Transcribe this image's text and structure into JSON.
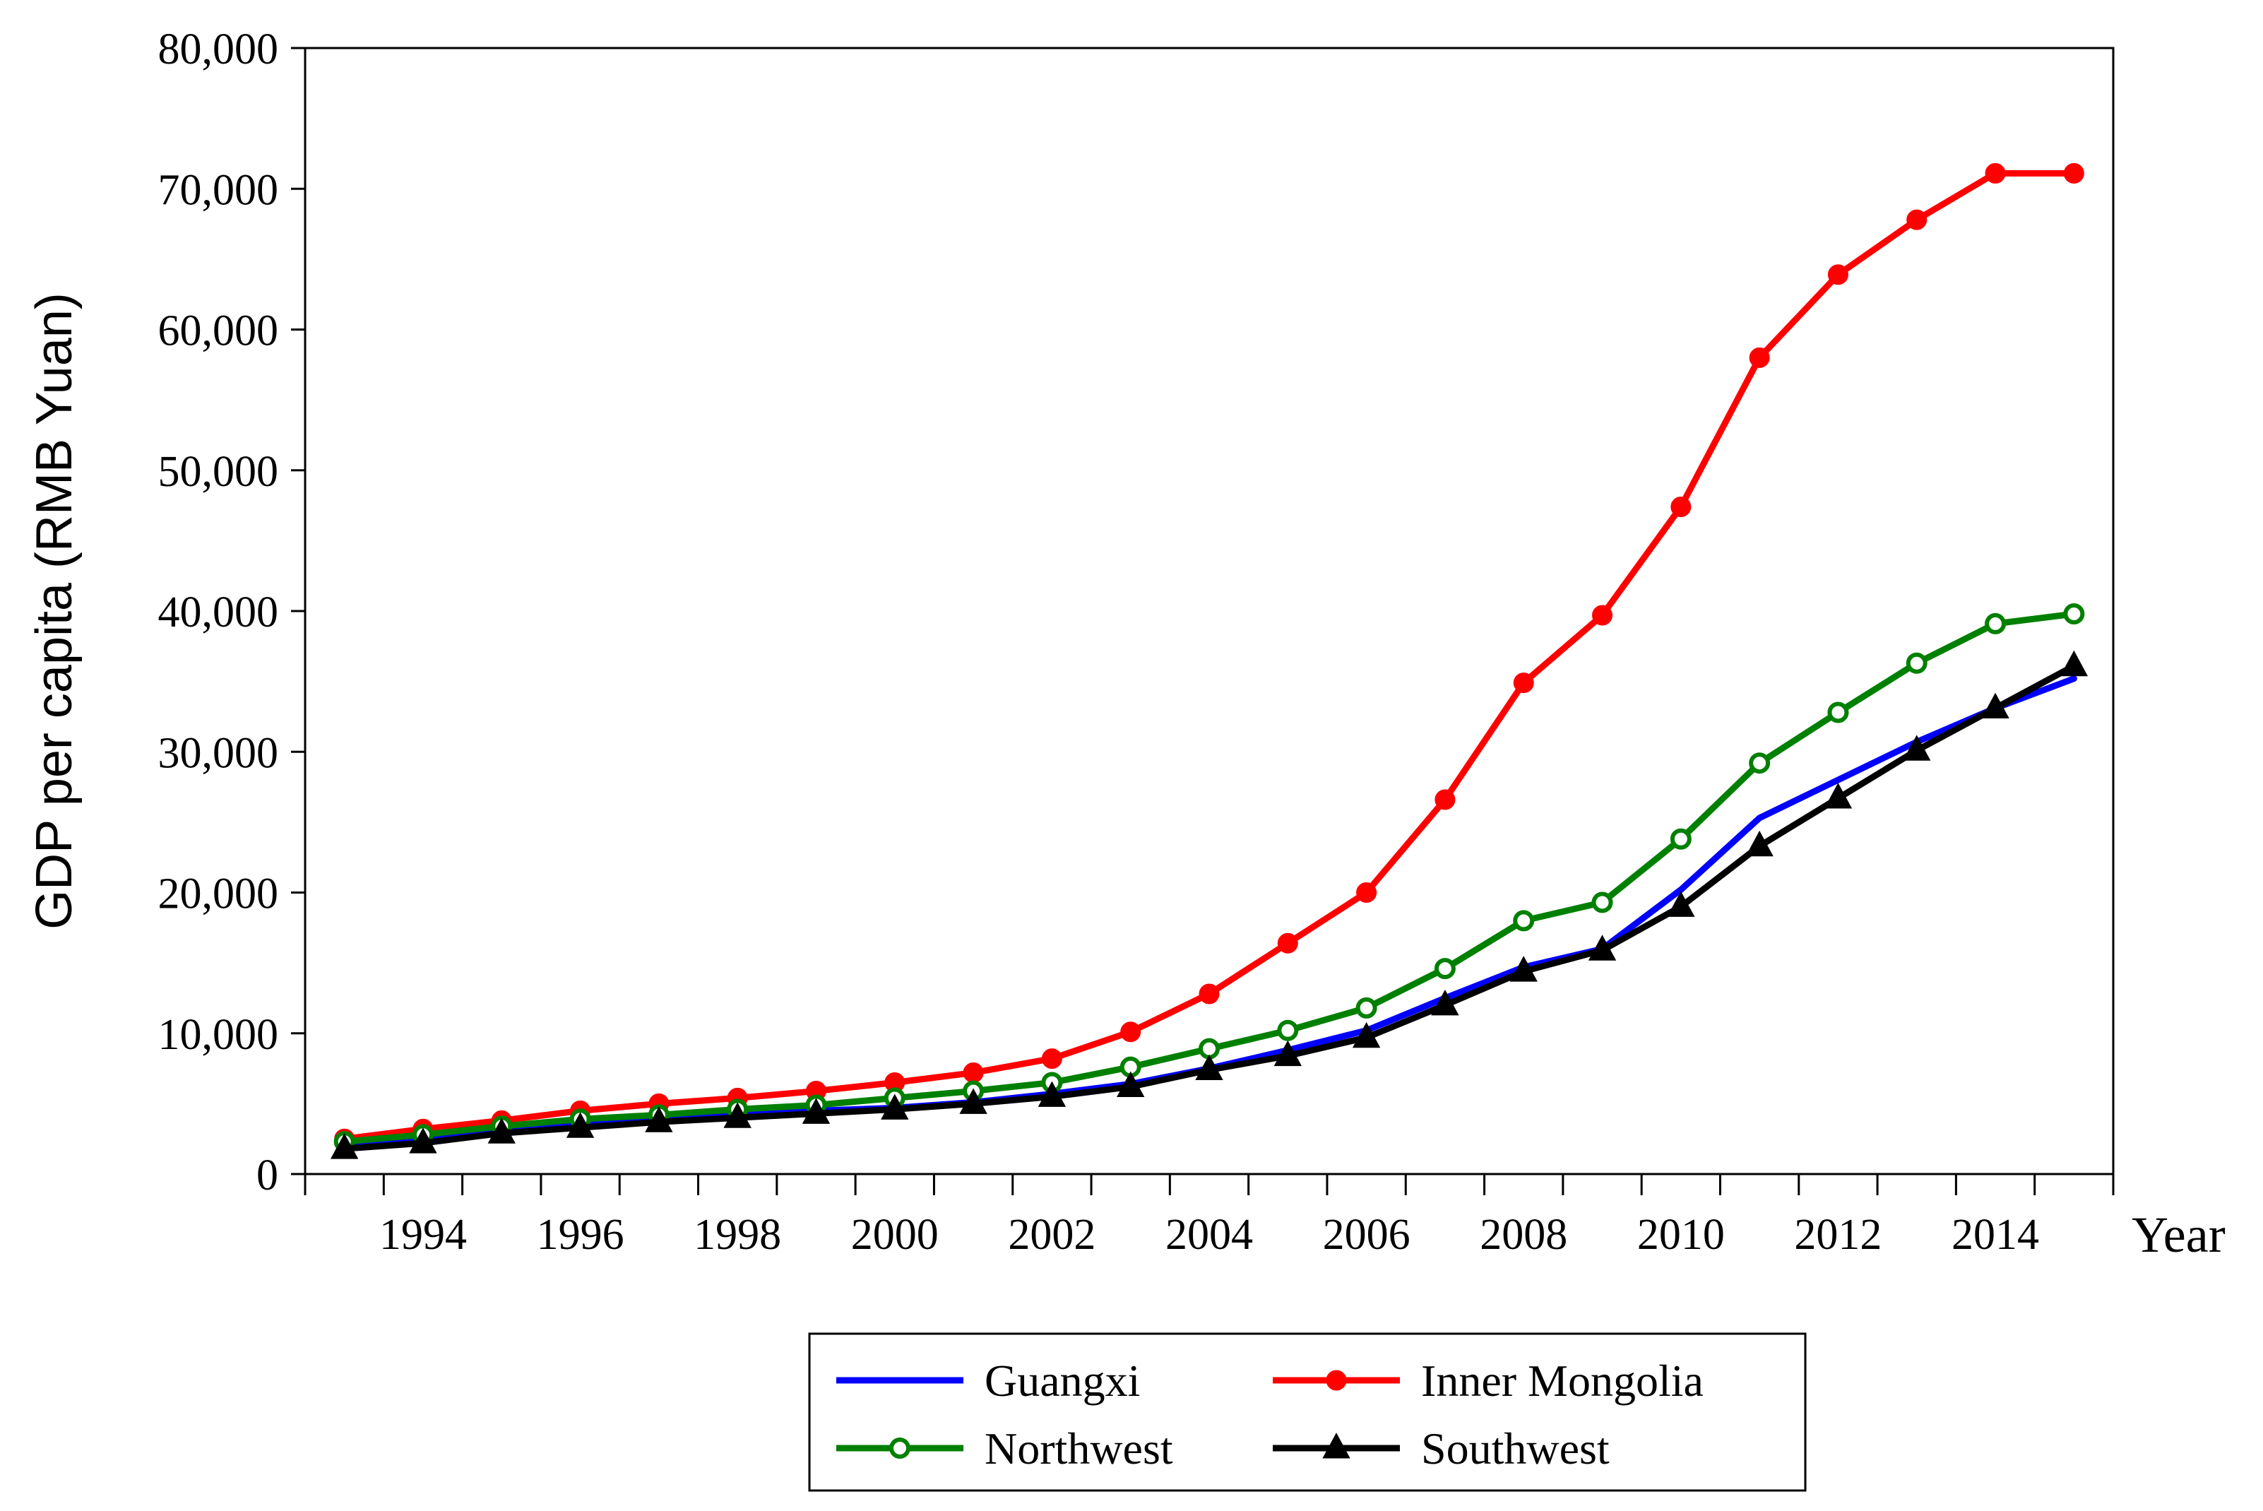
{
  "chart_data": {
    "type": "line",
    "title": "",
    "xlabel": "Year",
    "ylabel": "GDP per capita (RMB Yuan)",
    "ylim": [
      0,
      80000
    ],
    "xlim": [
      1992.5,
      2015.5
    ],
    "grid": false,
    "legend_position": "bottom-center",
    "y_ticks": [
      0,
      10000,
      20000,
      30000,
      40000,
      50000,
      60000,
      70000,
      80000
    ],
    "y_tick_labels": [
      "0",
      "10,000",
      "20,000",
      "30,000",
      "40,000",
      "50,000",
      "60,000",
      "70,000",
      "80,000"
    ],
    "x_ticks": [
      1994,
      1996,
      1998,
      2000,
      2002,
      2004,
      2006,
      2008,
      2010,
      2012,
      2014
    ],
    "x_tick_labels": [
      "1994",
      "1996",
      "1998",
      "2000",
      "2002",
      "2004",
      "2006",
      "2008",
      "2010",
      "2012",
      "2014"
    ],
    "x": [
      1993,
      1994,
      1995,
      1996,
      1997,
      1998,
      1999,
      2000,
      2001,
      2002,
      2003,
      2004,
      2005,
      2006,
      2007,
      2008,
      2009,
      2010,
      2011,
      2012,
      2013,
      2014,
      2015
    ],
    "series": [
      {
        "name": "Guangxi",
        "color": "#0000ff",
        "marker": "none",
        "values": [
          2000,
          2600,
          3100,
          3600,
          4000,
          4300,
          4500,
          4700,
          5100,
          5700,
          6400,
          7500,
          8800,
          10200,
          12500,
          14700,
          16000,
          20200,
          25300,
          28000,
          30700,
          33100,
          35200
        ]
      },
      {
        "name": "Inner Mongolia",
        "color": "#ff0000",
        "marker": "filled-circle",
        "values": [
          2500,
          3200,
          3800,
          4500,
          5000,
          5400,
          5900,
          6500,
          7200,
          8200,
          10100,
          12800,
          16400,
          20000,
          26600,
          34900,
          39700,
          47400,
          58000,
          63900,
          67800,
          71100,
          71100
        ]
      },
      {
        "name": "Northwest",
        "color": "#008000",
        "marker": "open-circle",
        "values": [
          2300,
          2800,
          3400,
          3900,
          4200,
          4600,
          4900,
          5400,
          5900,
          6500,
          7600,
          8900,
          10200,
          11800,
          14600,
          18000,
          19300,
          23800,
          29200,
          32800,
          36300,
          39100,
          39800
        ]
      },
      {
        "name": "Southwest",
        "color": "#000000",
        "marker": "filled-triangle",
        "values": [
          1800,
          2200,
          2900,
          3300,
          3700,
          4000,
          4300,
          4600,
          5000,
          5500,
          6200,
          7400,
          8400,
          9700,
          12000,
          14400,
          15900,
          19000,
          23300,
          26700,
          30100,
          33100,
          36100
        ]
      }
    ]
  }
}
